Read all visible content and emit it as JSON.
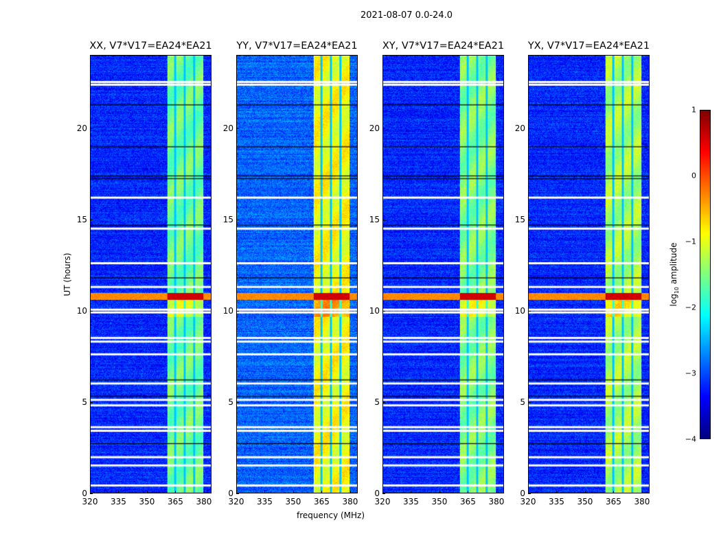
{
  "chart_data": {
    "type": "heatmap",
    "title": "2021-08-07 0.0-24.0",
    "xlabel": "frequency (MHz)",
    "ylabel": "UT (hours)",
    "xlim": [
      320,
      384
    ],
    "ylim": [
      0,
      24
    ],
    "xticks": [
      "320",
      "335",
      "350",
      "365",
      "380"
    ],
    "yticks": [
      "0",
      "5",
      "10",
      "15",
      "20"
    ],
    "panels": [
      {
        "title": "XX, V7*V17=EA24*EA21",
        "band_level": -1.6,
        "bg_level": -3.2
      },
      {
        "title": "YY, V7*V17=EA24*EA21",
        "band_level": -0.9,
        "bg_level": -2.9
      },
      {
        "title": "XY, V7*V17=EA24*EA21",
        "band_level": -1.5,
        "bg_level": -3.2
      },
      {
        "title": "YX, V7*V17=EA24*EA21",
        "band_level": -1.3,
        "bg_level": -3.2
      }
    ],
    "rfi_band_mhz": [
      360.5,
      380
    ],
    "rfi_band_gaps_mhz": [
      365,
      370,
      375
    ],
    "flare_hours": [
      10.6,
      11.0
    ],
    "flagged_hours": [
      22.55,
      22.4,
      16.2,
      14.5,
      12.6,
      11.3,
      10.05,
      9.9,
      8.5,
      8.3,
      7.6,
      6.0,
      5.1,
      4.8,
      3.6,
      3.4,
      1.95,
      1.5,
      0.4
    ],
    "dark_hours": [
      21.3,
      19.0,
      17.4,
      17.25,
      14.7,
      11.8,
      6.2,
      5.3,
      2.7
    ],
    "colorbar": {
      "label": "log10 amplitude",
      "label_main": "log",
      "label_sub": "10",
      "label_rest": " amplitude",
      "range": [
        -4,
        1
      ],
      "ticks": [
        "1",
        "0",
        "−1",
        "−2",
        "−3",
        "−4"
      ]
    }
  }
}
